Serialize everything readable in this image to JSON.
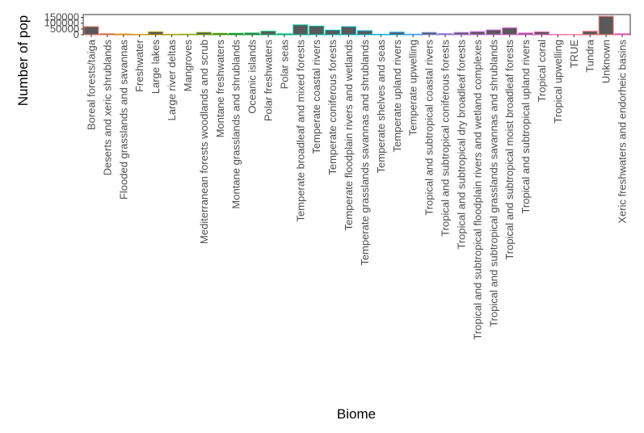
{
  "chart_data": {
    "type": "bar",
    "xlabel": "Biome",
    "ylabel": "Number of pop",
    "ylim": [
      0,
      175000
    ],
    "yticks": [
      0,
      50000,
      100000,
      150000
    ],
    "ytick_labels": [
      "0",
      "50000",
      "100000",
      "150000"
    ],
    "grid": false,
    "legend": "none",
    "categories": [
      "Boreal forests/taiga",
      "Deserts and xeric shrublands",
      "Flooded grasslands and savannas",
      "Freshwater",
      "Large lakes",
      "Large river deltas",
      "Mangroves",
      "Mediterranean forests woodlands and scrub",
      "Montane freshwaters",
      "Montane grasslands and shrublands",
      "Oceanic islands",
      "Polar freshwaters",
      "Polar seas",
      "Temperate broadleaf and mixed forests",
      "Temperate coastal rivers",
      "Temperate coniferous forests",
      "Temperate floodplain rivers and wetlands",
      "Temperate grasslands savannas and shrublands",
      "Temperate shelves and seas",
      "Temperate upland rivers",
      "Temperate upwelling",
      "Tropical and subtropical coastal rivers",
      "Tropical and subtropical coniferous forests",
      "Tropical and subtropical dry broadleaf forests",
      "Tropical and subtropical floodplain rivers and wetland complexes",
      "Tropical and subtropical grasslands savannas and shrublands",
      "Tropical and subtropical moist broadleaf forests",
      "Tropical and subtropical upland rivers",
      "Tropical coral",
      "Tropical upwelling",
      "TRUE",
      "Tundra",
      "Unknown",
      "Xeric freshwaters and endorheic basins"
    ],
    "values": [
      70000,
      9000,
      6000,
      3000,
      25000,
      4000,
      5000,
      20000,
      12000,
      12000,
      15000,
      30000,
      8000,
      85000,
      75000,
      40000,
      70000,
      35000,
      4000,
      22000,
      5000,
      20000,
      10000,
      20000,
      27000,
      42000,
      60000,
      15000,
      25000,
      3000,
      2000,
      30000,
      160000,
      9000
    ],
    "colors": [
      "#f8766d",
      "#ee8044",
      "#e38900",
      "#d39200",
      "#c09b00",
      "#aba300",
      "#93aa00",
      "#76b000",
      "#4fb400",
      "#00b81f",
      "#00bb4e",
      "#00be6c",
      "#00bf86",
      "#00c19c",
      "#00c1b0",
      "#00c0c3",
      "#00bdd3",
      "#00b9e3",
      "#00b3f0",
      "#00acfc",
      "#35a2ff",
      "#7d96ff",
      "#a58aff",
      "#c37dff",
      "#d774fd",
      "#e76bf3",
      "#f463e8",
      "#fc61d7",
      "#ff62c5",
      "#ff66b0",
      "#ff6c9a",
      "#fd7082",
      "#f8766d",
      "#ff61c3"
    ],
    "bar_fill": "#595959"
  }
}
